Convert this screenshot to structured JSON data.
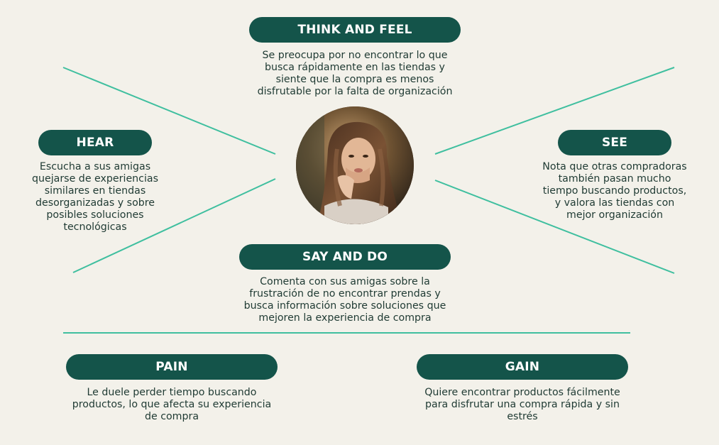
{
  "colors": {
    "background": "#f3f1ea",
    "pill": "#14544a",
    "line": "#3fbf9f",
    "text": "#1f3a33"
  },
  "center": {
    "icon": "woman-portrait-photo"
  },
  "sections": {
    "think_and_feel": {
      "title": "THINK AND FEEL",
      "lines": [
        "Se preocupa por no encontrar lo que",
        "busca rápidamente en las tiendas y",
        "siente que la compra es menos",
        "disfrutable por la falta de organización"
      ]
    },
    "hear": {
      "title": "HEAR",
      "lines": [
        "Escucha a sus amigas",
        "quejarse de experiencias",
        "similares en tiendas",
        "desorganizadas y sobre",
        "posibles soluciones",
        "tecnológicas"
      ]
    },
    "see": {
      "title": "SEE",
      "lines": [
        "Nota que otras compradoras",
        "también pasan mucho",
        "tiempo buscando productos,",
        "y valora las tiendas con",
        "mejor organización"
      ]
    },
    "say_and_do": {
      "title": "SAY AND DO",
      "lines": [
        "Comenta con sus amigas sobre la",
        "frustración de no encontrar prendas y",
        "busca información sobre soluciones que",
        "mejoren la experiencia de compra"
      ]
    },
    "pain": {
      "title": "PAIN",
      "lines": [
        "Le duele perder tiempo buscando",
        "productos, lo que afecta su experiencia",
        "de compra"
      ]
    },
    "gain": {
      "title": "GAIN",
      "lines": [
        "Quiere encontrar productos fácilmente",
        "para disfrutar una compra rápida y sin",
        "estrés"
      ]
    }
  }
}
